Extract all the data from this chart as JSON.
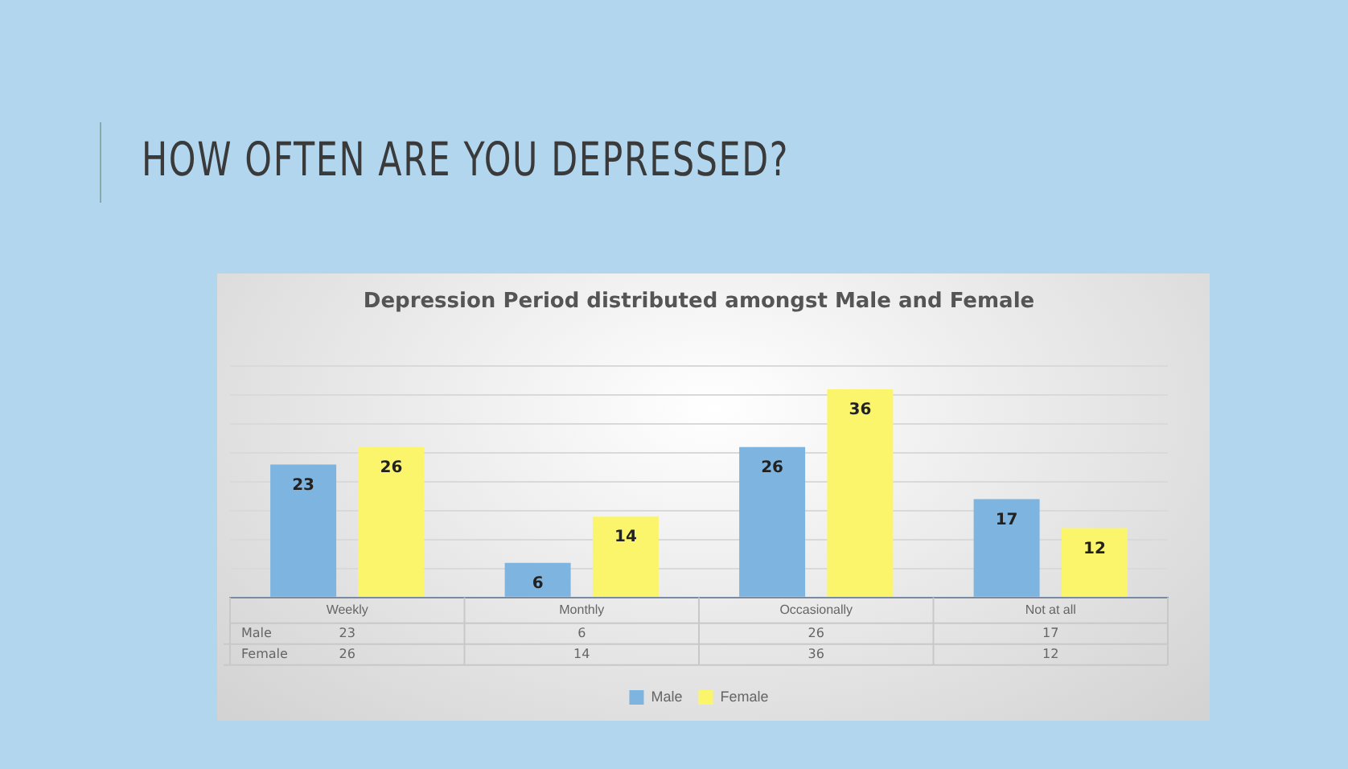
{
  "chart_data": {
    "type": "bar",
    "title": "Depression Period distributed amongst Male and Female",
    "annotations": [
      "HOW OFTEN ARE YOU DEPRESSED?",
      "Male",
      "Female",
      "23",
      "6",
      "26",
      "17",
      "26",
      "14",
      "36",
      "12"
    ],
    "categories": [
      "Weekly",
      "Monthly",
      "Occasionally",
      "Not at all"
    ],
    "series": [
      {
        "name": "Male",
        "color": "#7db4e0",
        "values": [
          23,
          6,
          26,
          17
        ]
      },
      {
        "name": "Female",
        "color": "#fbf56c",
        "values": [
          26,
          14,
          36,
          12
        ]
      }
    ],
    "ylim": [
      0,
      40
    ],
    "yticks": [
      {
        "value": 0,
        "label": null
      },
      {
        "value": 5,
        "label": null
      },
      {
        "value": 10,
        "label": null
      },
      {
        "value": 15,
        "label": null
      },
      {
        "value": 20,
        "label": null
      },
      {
        "value": 25,
        "label": null
      },
      {
        "value": 30,
        "label": null
      },
      {
        "value": 35,
        "label": null
      },
      {
        "value": 40,
        "label": null
      }
    ],
    "tick_labels": "x",
    "grid": "y",
    "data_labels": true,
    "legend": "bottom"
  }
}
